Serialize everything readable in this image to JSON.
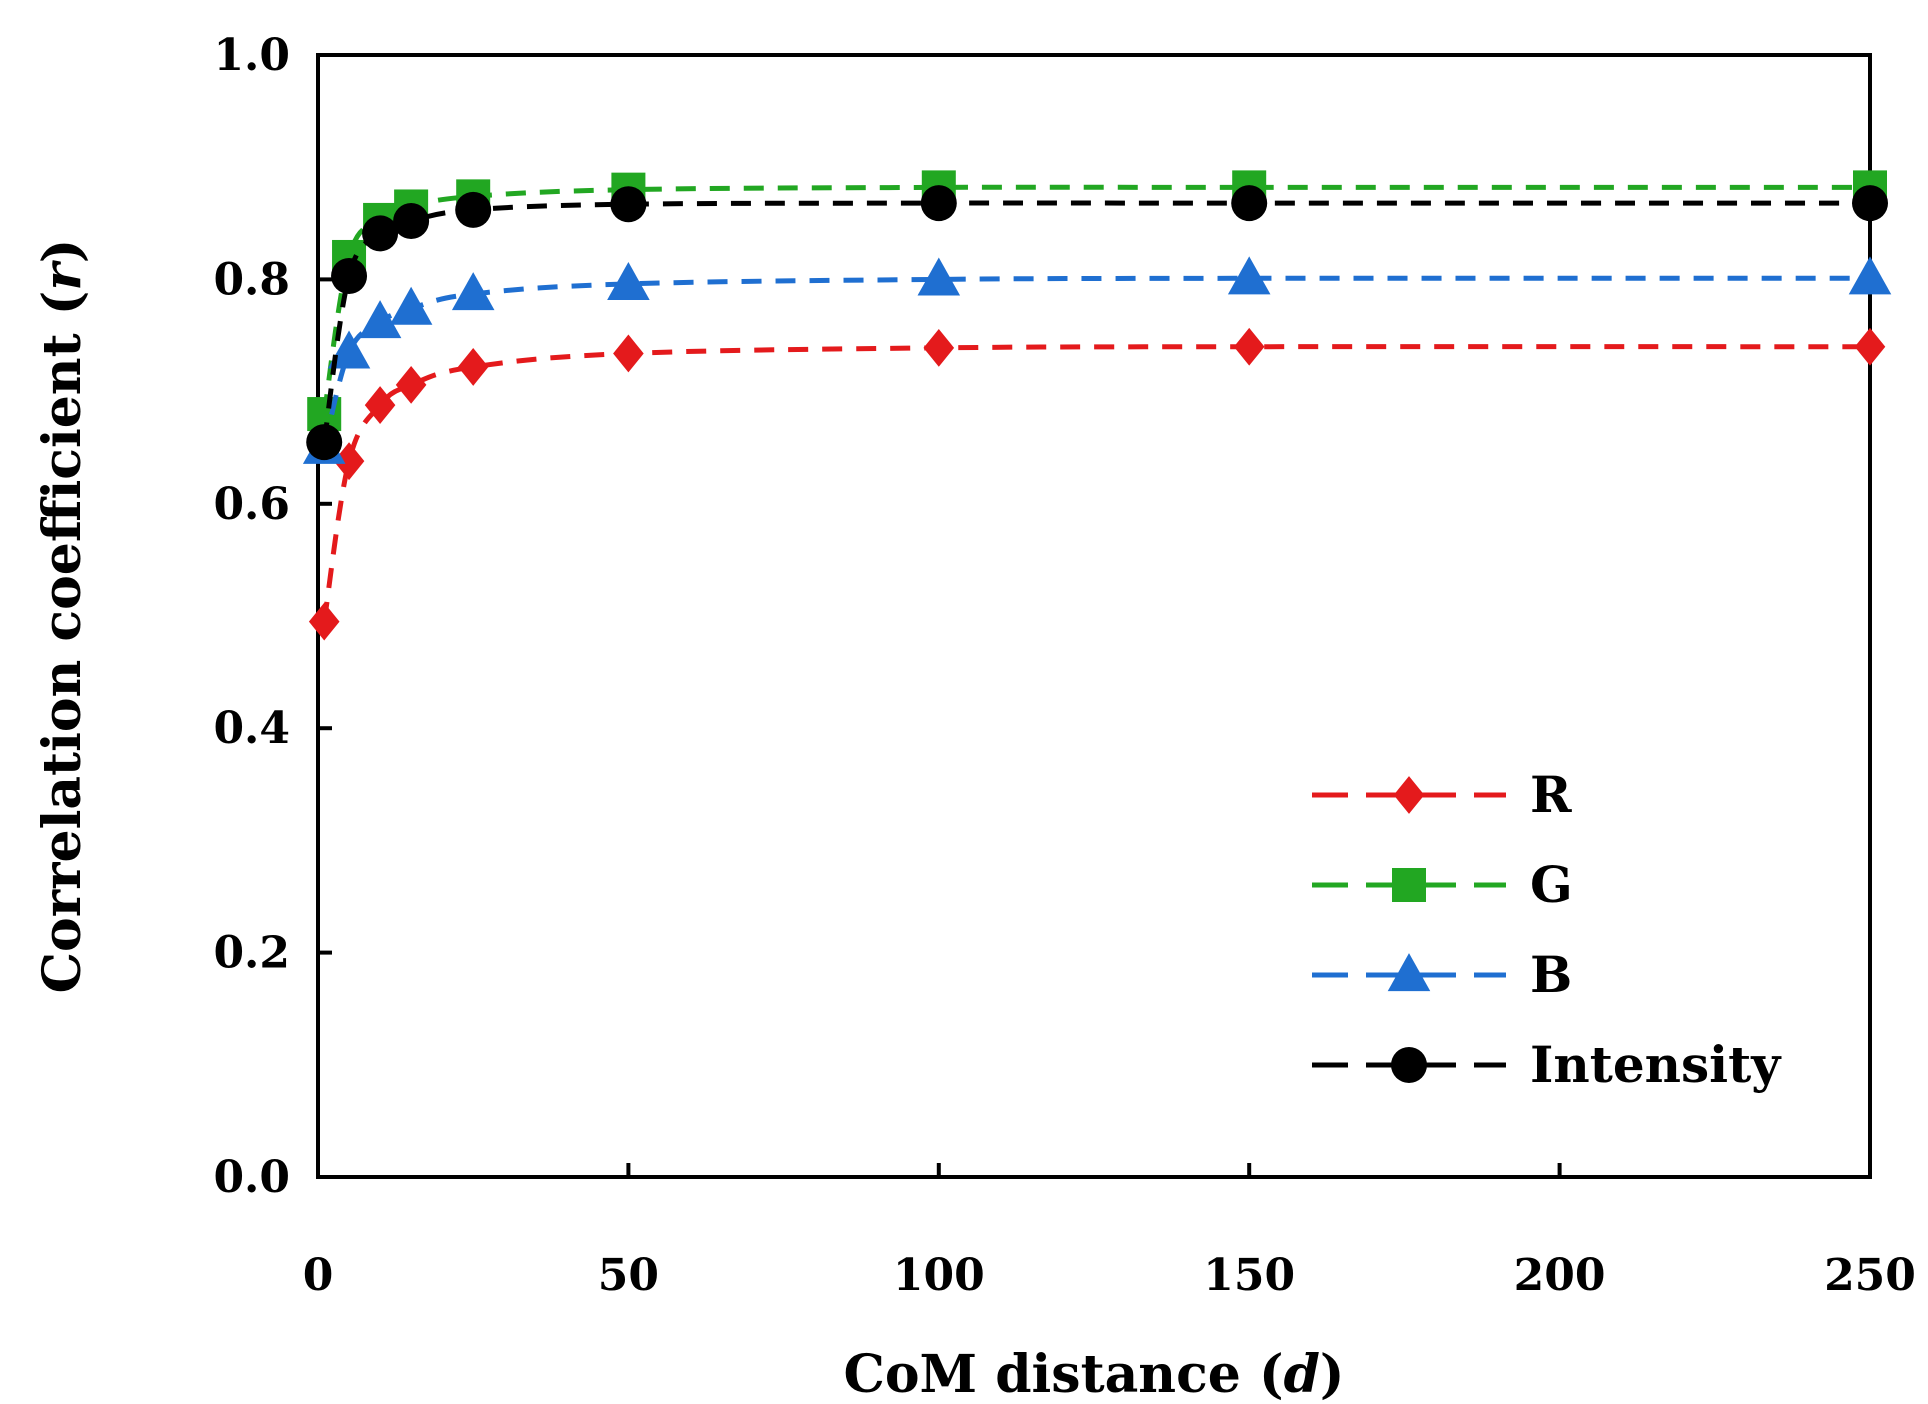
{
  "chart_data": {
    "type": "line",
    "title": "",
    "xlabel": "CoM distance (d)",
    "xlabel_parts": {
      "pre": "CoM distance (",
      "var": "d",
      "post": ")"
    },
    "ylabel": "Correlation coefficient (r)",
    "ylabel_parts": {
      "pre": "Correlation coefficient (",
      "var": "r",
      "post": ")"
    },
    "xlim": [
      0,
      250
    ],
    "ylim": [
      0.0,
      1.0
    ],
    "xticks": [
      "0",
      "50",
      "100",
      "150",
      "200",
      "250"
    ],
    "yticks": [
      "0.0",
      "0.2",
      "0.4",
      "0.6",
      "0.8",
      "1.0"
    ],
    "grid": false,
    "legend_position": "bottom-right",
    "x": [
      1,
      5,
      10,
      15,
      25,
      50,
      100,
      150,
      250
    ],
    "series": [
      {
        "name": "R",
        "color": "#e41a1c",
        "marker": "diamond",
        "line_style": "dashed",
        "values": [
          0.495,
          0.638,
          0.688,
          0.706,
          0.722,
          0.734,
          0.739,
          0.74,
          0.74
        ]
      },
      {
        "name": "G",
        "color": "#22a722",
        "marker": "square",
        "line_style": "dashed",
        "values": [
          0.68,
          0.82,
          0.853,
          0.865,
          0.874,
          0.88,
          0.882,
          0.882,
          0.882
        ]
      },
      {
        "name": "B",
        "color": "#1f6fd1",
        "marker": "triangle",
        "line_style": "dashed",
        "values": [
          0.65,
          0.735,
          0.762,
          0.774,
          0.787,
          0.796,
          0.8,
          0.801,
          0.801
        ]
      },
      {
        "name": "Intensity",
        "color": "#000000",
        "marker": "circle",
        "line_style": "dashed",
        "values": [
          0.655,
          0.803,
          0.841,
          0.852,
          0.862,
          0.867,
          0.868,
          0.868,
          0.868
        ]
      }
    ]
  }
}
